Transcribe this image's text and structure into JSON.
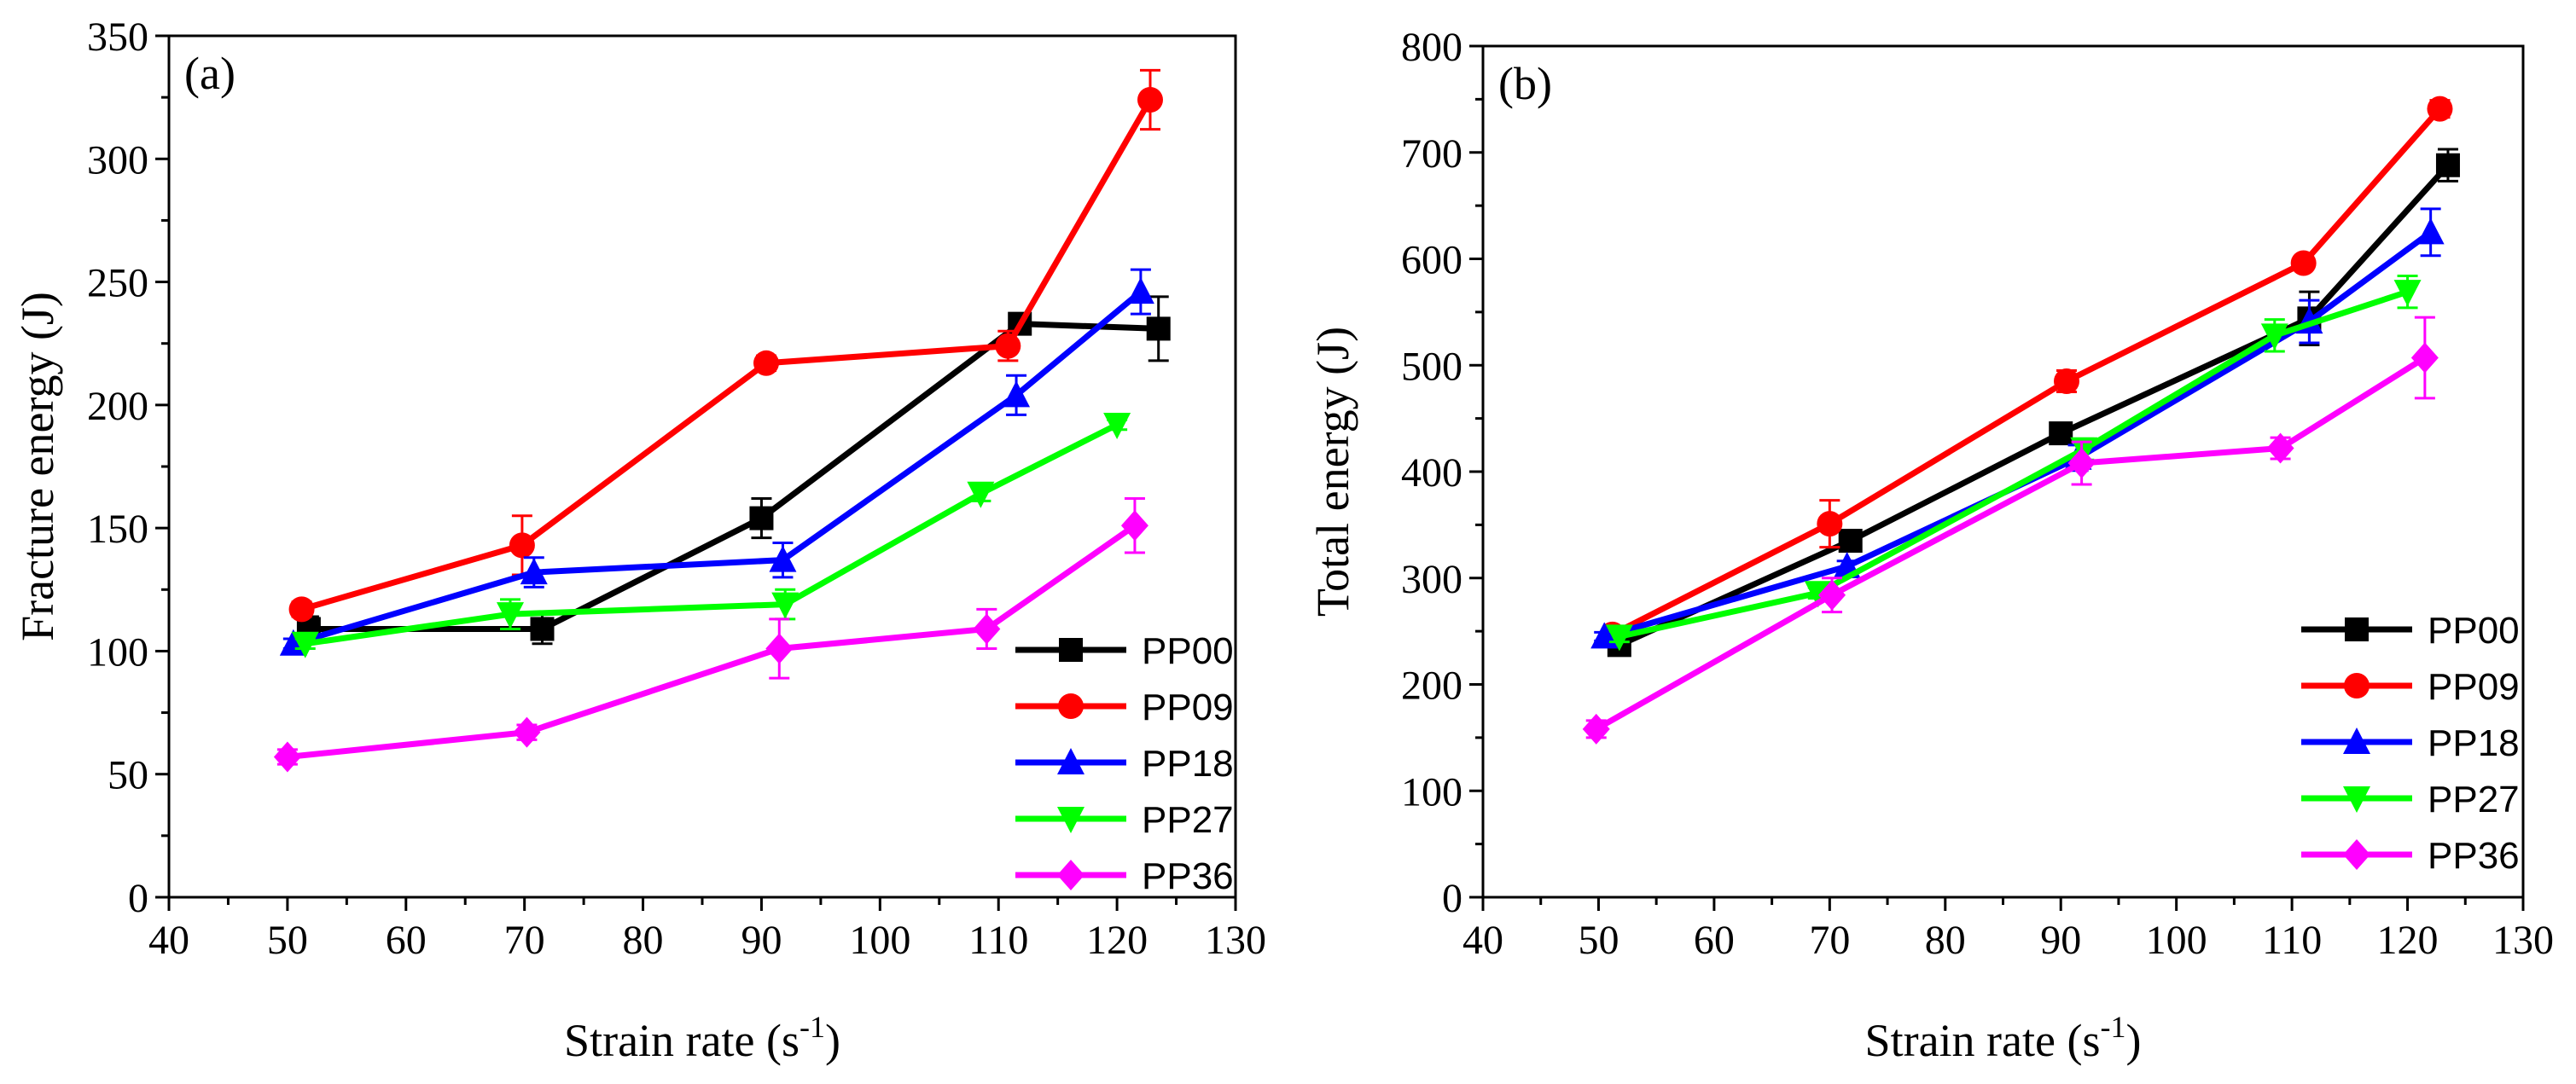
{
  "chart_data": [
    {
      "type": "line",
      "panel_label": "(a)",
      "xlabel": "Strain rate (s",
      "xlabel_sup": "-1",
      "xlabel_end": ")",
      "ylabel": "Fracture energy (J)",
      "xlim": [
        40,
        130
      ],
      "ylim": [
        0,
        350
      ],
      "xticks": [
        40,
        50,
        60,
        70,
        80,
        90,
        100,
        110,
        120,
        130
      ],
      "yticks": [
        0,
        50,
        100,
        150,
        200,
        250,
        300,
        350
      ],
      "legend_position": "bottom-right",
      "series": [
        {
          "name": "PP00",
          "color": "#000000",
          "marker": "square",
          "x": [
            51.8,
            71.5,
            90.0,
            111.8,
            123.5
          ],
          "y": [
            109,
            109,
            154,
            233,
            231
          ],
          "err": [
            5,
            6,
            8,
            3,
            13
          ]
        },
        {
          "name": "PP09",
          "color": "#ff0000",
          "marker": "circle",
          "x": [
            51.2,
            69.8,
            90.4,
            110.8,
            122.8
          ],
          "y": [
            117,
            143,
            217,
            224,
            324
          ],
          "err": [
            3,
            12,
            3,
            6,
            12
          ]
        },
        {
          "name": "PP18",
          "color": "#0000ff",
          "marker": "triangle-up",
          "x": [
            50.5,
            70.8,
            91.8,
            111.5,
            122.0
          ],
          "y": [
            103,
            132,
            137,
            204,
            246
          ],
          "err": [
            2,
            6,
            7,
            8,
            9
          ]
        },
        {
          "name": "PP27",
          "color": "#00ff00",
          "marker": "triangle-down",
          "x": [
            51.5,
            68.8,
            92.0,
            108.5,
            120.0
          ],
          "y": [
            103,
            115,
            119,
            164,
            192
          ],
          "err": [
            2,
            6,
            6,
            3,
            2
          ]
        },
        {
          "name": "PP36",
          "color": "#ff00ff",
          "marker": "diamond",
          "x": [
            50.0,
            70.2,
            91.5,
            109.0,
            121.5
          ],
          "y": [
            57,
            67,
            101,
            109,
            151
          ],
          "err": [
            3,
            3,
            12,
            8,
            11
          ]
        }
      ]
    },
    {
      "type": "line",
      "panel_label": "(b)",
      "xlabel": "Strain rate (s",
      "xlabel_sup": "-1",
      "xlabel_end": ")",
      "ylabel": "Total energy (J)",
      "xlim": [
        40,
        130
      ],
      "ylim": [
        0,
        800
      ],
      "xticks": [
        40,
        50,
        60,
        70,
        80,
        90,
        100,
        110,
        120,
        130
      ],
      "yticks": [
        0,
        100,
        200,
        300,
        400,
        500,
        600,
        700,
        800
      ],
      "legend_position": "bottom-right",
      "series": [
        {
          "name": "PP00",
          "color": "#000000",
          "marker": "square",
          "x": [
            51.8,
            71.8,
            90.0,
            111.5,
            123.5
          ],
          "y": [
            237,
            335,
            436,
            544,
            688
          ],
          "err": [
            5,
            5,
            5,
            25,
            15
          ]
        },
        {
          "name": "PP09",
          "color": "#ff0000",
          "marker": "circle",
          "x": [
            51.2,
            70.0,
            90.5,
            111.0,
            122.8
          ],
          "y": [
            247,
            351,
            485,
            596,
            741
          ],
          "err": [
            3,
            22,
            10,
            3,
            8
          ]
        },
        {
          "name": "PP18",
          "color": "#0000ff",
          "marker": "triangle-up",
          "x": [
            50.5,
            71.5,
            91.5,
            111.5,
            122.0
          ],
          "y": [
            245,
            311,
            413,
            541,
            625
          ],
          "err": [
            4,
            5,
            12,
            20,
            22
          ]
        },
        {
          "name": "PP27",
          "color": "#00ff00",
          "marker": "triangle-down",
          "x": [
            51.8,
            69.0,
            92.0,
            108.5,
            120.0
          ],
          "y": [
            245,
            286,
            421,
            528,
            569
          ],
          "err": [
            5,
            5,
            10,
            15,
            15
          ]
        },
        {
          "name": "PP36",
          "color": "#ff00ff",
          "marker": "diamond",
          "x": [
            49.8,
            70.2,
            91.8,
            109.0,
            121.5
          ],
          "y": [
            158,
            284,
            408,
            422,
            507
          ],
          "err": [
            8,
            16,
            20,
            10,
            38
          ]
        }
      ]
    }
  ]
}
